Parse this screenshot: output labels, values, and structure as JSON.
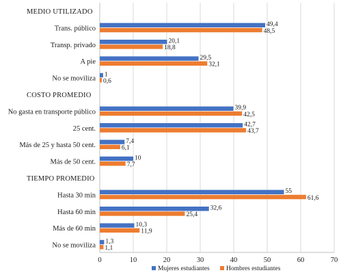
{
  "chart_data": {
    "type": "bar",
    "orientation": "horizontal",
    "xlim": [
      0,
      70
    ],
    "x_ticks": [
      "0",
      "10",
      "20",
      "30",
      "40",
      "50",
      "60",
      "70"
    ],
    "grid": "vertical",
    "legend_position": "bottom",
    "series": [
      {
        "name": "Mujeres estudiantes",
        "color": "#4472c4"
      },
      {
        "name": "Hombres estudiantes",
        "color": "#ed7d31"
      }
    ],
    "sections": [
      {
        "title": "MEDIO UTILIZADO",
        "categories": [
          {
            "label": "Trans. público",
            "mujeres": 49.4,
            "hombres": 48.5,
            "mujeres_label": "49,4",
            "hombres_label": "48,5"
          },
          {
            "label": "Transp. privado",
            "mujeres": 20.1,
            "hombres": 18.8,
            "mujeres_label": "20,1",
            "hombres_label": "18,8"
          },
          {
            "label": "A pie",
            "mujeres": 29.5,
            "hombres": 32.1,
            "mujeres_label": "29,5",
            "hombres_label": "32,1"
          },
          {
            "label": "No se moviliza",
            "mujeres": 1,
            "hombres": 0.6,
            "mujeres_label": "1",
            "hombres_label": "0,6"
          }
        ]
      },
      {
        "title": "COSTO PROMEDIO",
        "categories": [
          {
            "label": "No gasta en transporte público",
            "mujeres": 39.9,
            "hombres": 42.5,
            "mujeres_label": "39,9",
            "hombres_label": "42,5"
          },
          {
            "label": "25 cent.",
            "mujeres": 42.7,
            "hombres": 43.7,
            "mujeres_label": "42,7",
            "hombres_label": "43,7"
          },
          {
            "label": "Más de 25 y hasta 50 cent.",
            "mujeres": 7.4,
            "hombres": 6.1,
            "mujeres_label": "7,4",
            "hombres_label": "6,1"
          },
          {
            "label": "Más de 50 cent.",
            "mujeres": 10,
            "hombres": 7.7,
            "mujeres_label": "10",
            "hombres_label": "7,7"
          }
        ]
      },
      {
        "title": "TIEMPO PROMEDIO",
        "categories": [
          {
            "label": "Hasta 30 min",
            "mujeres": 55,
            "hombres": 61.6,
            "mujeres_label": "55",
            "hombres_label": "61,6"
          },
          {
            "label": "Hasta 60 min",
            "mujeres": 32.6,
            "hombres": 25.4,
            "mujeres_label": "32,6",
            "hombres_label": "25,4"
          },
          {
            "label": "Más de 60 min",
            "mujeres": 10.3,
            "hombres": 11.9,
            "mujeres_label": "10,3",
            "hombres_label": "11,9"
          },
          {
            "label": "No se moviliza",
            "mujeres": 1.3,
            "hombres": 1.1,
            "mujeres_label": "1,3",
            "hombres_label": "1,1"
          }
        ]
      }
    ]
  }
}
